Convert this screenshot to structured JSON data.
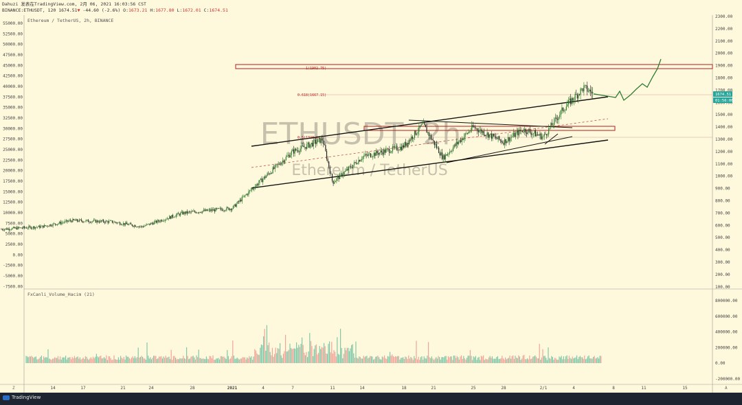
{
  "header": {
    "line1": "Dahuzi 发表在TradingView.com, 2月 06, 2021 16:03:56 CST",
    "symbol": "BINANCE:ETHUSDT, 120",
    "price": "1674.51",
    "arrow": "▼",
    "change": "-44.60 (-2.6%)",
    "o_label": "O:",
    "o_val": "1673.21",
    "h_label": "H:",
    "h_val": "1677.80",
    "l_label": "L:",
    "l_val": "1672.01",
    "c_label": "C:",
    "c_val": "1674.51"
  },
  "chart_title": "Ethereum / TetherUS, 2h, BINANCE",
  "watermark": {
    "symbol": "ETHUSDT, 2h",
    "name": "Ethereum / TetherUS"
  },
  "annotations": {
    "fib1": "1(1902.75)",
    "fib0618": "0.618(1667.15)",
    "fib_mid": "0.5(1328.61)"
  },
  "price_badges": {
    "last": "1674.51",
    "countdown": "01:56:06"
  },
  "volume_title": "FxCanli_Volume_Hacim (21)",
  "left_axis_ticks": [
    "55000.00",
    "52500.00",
    "50000.00",
    "47500.00",
    "45000.00",
    "42500.00",
    "40000.00",
    "37500.00",
    "35000.00",
    "32500.00",
    "30000.00",
    "27500.00",
    "25000.00",
    "22500.00",
    "20000.00",
    "17500.00",
    "15000.00",
    "12500.00",
    "10000.00",
    "7500.00",
    "5000.00",
    "2500.00",
    "0.00",
    "-2500.00",
    "-5000.00",
    "-7500.00"
  ],
  "right_axis_ticks": [
    "2300.00",
    "2200.00",
    "2100.00",
    "2000.00",
    "1900.00",
    "1800.00",
    "1700.00",
    "1600.00",
    "1500.00",
    "1400.00",
    "1300.00",
    "1200.00",
    "1100.00",
    "1000.00",
    "900.00",
    "800.00",
    "700.00",
    "600.00",
    "500.00",
    "400.00",
    "300.00",
    "200.00",
    "100.00"
  ],
  "volume_axis_ticks": [
    "800000.00",
    "600000.00",
    "400000.00",
    "200000.00",
    "0.00",
    "-200000.00"
  ],
  "x_axis_ticks": [
    "14",
    "17",
    "21",
    "24",
    "28",
    "2021",
    "4",
    "7",
    "11",
    "14",
    "18",
    "21",
    "25",
    "28",
    "2/1",
    "4",
    "8",
    "11",
    "15"
  ],
  "axis_corner": {
    "left": "Z",
    "right": "A"
  },
  "footer": {
    "brand": "TradingView"
  },
  "colors": {
    "background": "#fef9dc",
    "candle_up": "#2a7a2a",
    "candle_down": "#222222",
    "resistance_box": "#b71c1c",
    "projection": "#2e7d32",
    "badge": "#26a69a",
    "volume_up": "#7fc8a9",
    "volume_down": "#f0a49a"
  },
  "chart_data": {
    "type": "candlestick",
    "title": "Ethereum / TetherUS, 2h, BINANCE",
    "x_label_dates": [
      "Dec 14",
      "Dec 17",
      "Dec 21",
      "Dec 24",
      "Dec 28",
      "2021 Jan 1",
      "Jan 4",
      "Jan 7",
      "Jan 11",
      "Jan 14",
      "Jan 18",
      "Jan 21",
      "Jan 25",
      "Jan 28",
      "Feb 1",
      "Feb 4",
      "Feb 8",
      "Feb 11",
      "Feb 15"
    ],
    "price_axis_range": [
      100,
      2300
    ],
    "last_price": 1674.51,
    "price_path": [
      {
        "date": "Dec 10",
        "price": 570
      },
      {
        "date": "Dec 14",
        "price": 590
      },
      {
        "date": "Dec 17",
        "price": 640
      },
      {
        "date": "Dec 21",
        "price": 630
      },
      {
        "date": "Dec 24",
        "price": 590
      },
      {
        "date": "Dec 28",
        "price": 700
      },
      {
        "date": "Jan 1",
        "price": 740
      },
      {
        "date": "Jan 3",
        "price": 900
      },
      {
        "date": "Jan 7",
        "price": 1200
      },
      {
        "date": "Jan 10",
        "price": 1300
      },
      {
        "date": "Jan 11",
        "price": 950
      },
      {
        "date": "Jan 14",
        "price": 1160
      },
      {
        "date": "Jan 18",
        "price": 1240
      },
      {
        "date": "Jan 20",
        "price": 1420
      },
      {
        "date": "Jan 22",
        "price": 1150
      },
      {
        "date": "Jan 25",
        "price": 1400
      },
      {
        "date": "Jan 28",
        "price": 1280
      },
      {
        "date": "Jan 30",
        "price": 1380
      },
      {
        "date": "Feb 1",
        "price": 1320
      },
      {
        "date": "Feb 3",
        "price": 1550
      },
      {
        "date": "Feb 5",
        "price": 1720
      },
      {
        "date": "Feb 6",
        "price": 1674.51
      }
    ],
    "levels": {
      "fib_1": 1902.75,
      "fib_0618": 1667.15,
      "resistance_zone": [
        1380,
        1420
      ]
    },
    "projection": [
      {
        "date": "Feb 6",
        "price": 1670
      },
      {
        "date": "Feb 8",
        "price": 1700
      },
      {
        "date": "Feb 10",
        "price": 1780
      },
      {
        "date": "Feb 12",
        "price": 1950
      }
    ],
    "volume_axis_range": [
      -200000,
      900000
    ],
    "volume_peak": 650000
  }
}
